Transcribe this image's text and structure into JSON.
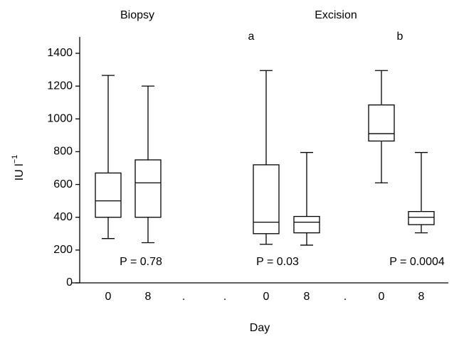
{
  "chart_data": {
    "type": "box",
    "group_labels": [
      "Biopsy",
      "Excision"
    ],
    "letters": [
      "a",
      "b"
    ],
    "p_values": [
      "P = 0.78",
      "P = 0.03",
      "P = 0.0004"
    ],
    "xlabel": "Day",
    "ylabel": {
      "base": "IU l",
      "sup": "−1"
    },
    "categories": [
      "0",
      "8",
      ".",
      ".",
      "0",
      "8",
      ".",
      "0",
      "8"
    ],
    "whislo": [
      270,
      245,
      null,
      null,
      235,
      230,
      null,
      610,
      305
    ],
    "q1": [
      400,
      400,
      null,
      null,
      300,
      305,
      null,
      865,
      355
    ],
    "med": [
      500,
      610,
      null,
      null,
      370,
      370,
      null,
      910,
      400
    ],
    "q3": [
      670,
      750,
      null,
      null,
      720,
      405,
      null,
      1085,
      435
    ],
    "whishi": [
      1265,
      1200,
      null,
      null,
      1295,
      795,
      null,
      1295,
      795
    ],
    "color": "#000000",
    "ylim": [
      0,
      1400
    ],
    "yticks": [
      0,
      200,
      400,
      600,
      800,
      1000,
      1200,
      1400
    ]
  }
}
